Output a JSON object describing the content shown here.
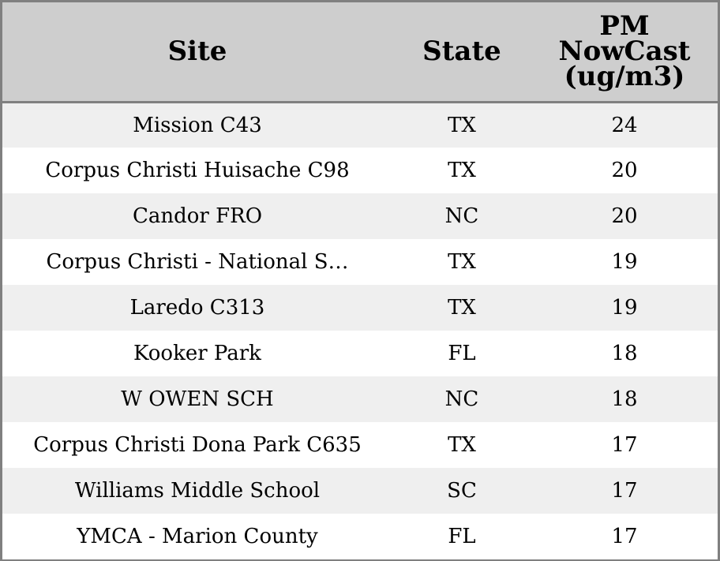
{
  "table": {
    "headers": {
      "site": "Site",
      "state": "State",
      "pm_lines": [
        "PM",
        "NowCast",
        "(ug/m3)"
      ]
    },
    "rows": [
      {
        "site": "Mission C43",
        "state": "TX",
        "pm": "24"
      },
      {
        "site": "Corpus Christi Huisache C98",
        "state": "TX",
        "pm": "20"
      },
      {
        "site": "Candor FRO",
        "state": "NC",
        "pm": "20"
      },
      {
        "site": "Corpus Christi - National S…",
        "state": "TX",
        "pm": "19"
      },
      {
        "site": "Laredo C313",
        "state": "TX",
        "pm": "19"
      },
      {
        "site": "Kooker Park",
        "state": "FL",
        "pm": "18"
      },
      {
        "site": "W OWEN SCH",
        "state": "NC",
        "pm": "18"
      },
      {
        "site": "Corpus Christi Dona Park C635",
        "state": "TX",
        "pm": "17"
      },
      {
        "site": "Williams Middle School",
        "state": "SC",
        "pm": "17"
      },
      {
        "site": "YMCA - Marion County",
        "state": "FL",
        "pm": "17"
      }
    ]
  },
  "colors": {
    "header_bg": "#cecece",
    "row_alt_bg": "#efefef",
    "row_bg": "#ffffff",
    "border": "#808080"
  }
}
